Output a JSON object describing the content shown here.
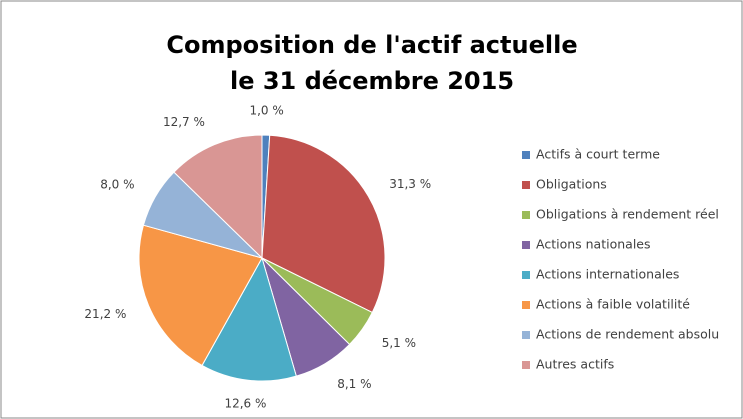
{
  "chart_data": {
    "type": "pie",
    "title": [
      "Composition de l'actif actuelle",
      "le 31 décembre 2015"
    ],
    "categories": [
      "Actifs à court terme",
      "Obligations",
      "Obligations à rendement réel",
      "Actions nationales",
      "Actions internationales",
      "Actions à faible volatilité",
      "Actions de rendement absolu",
      "Autres actifs"
    ],
    "values": [
      1.0,
      31.3,
      5.1,
      8.1,
      12.6,
      21.2,
      8.0,
      12.7
    ],
    "value_labels": [
      "1,0 %",
      "31,3 %",
      "5,1 %",
      "8,1 %",
      "12,6 %",
      "21,2 %",
      "8,0 %",
      "12,7 %"
    ],
    "colors": [
      "#4f81bd",
      "#c0504d",
      "#9bbb59",
      "#8064a2",
      "#4bacc6",
      "#f79646",
      "#95b3d7",
      "#d99694"
    ],
    "legend": "right"
  }
}
